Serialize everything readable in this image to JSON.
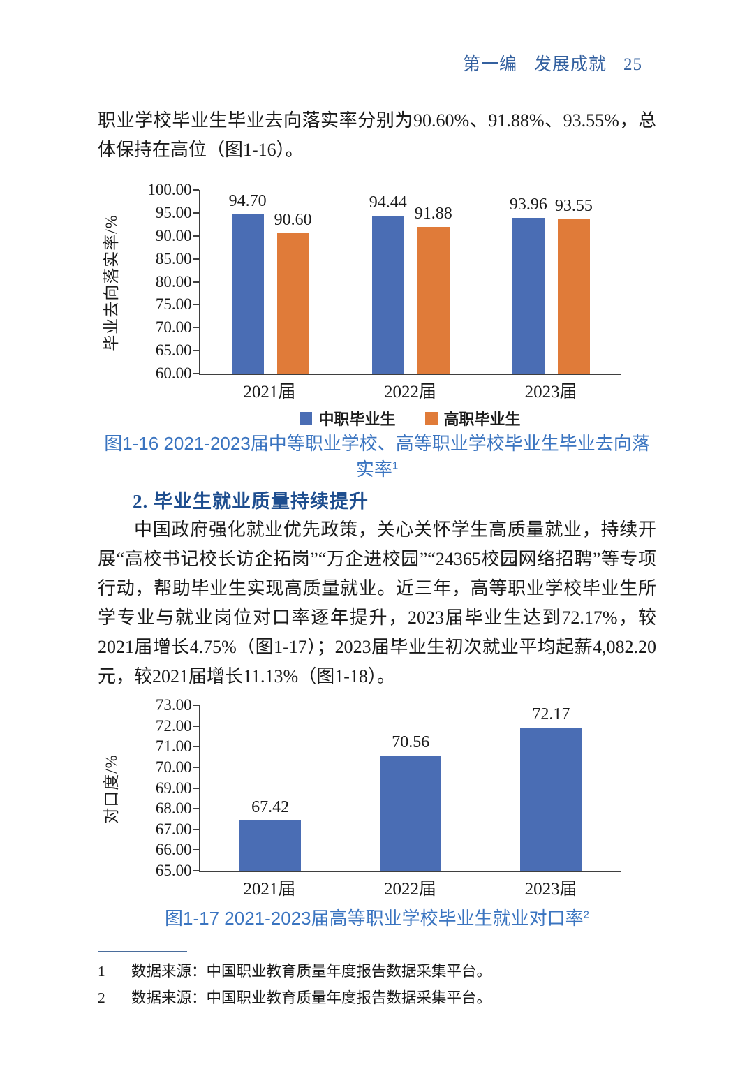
{
  "header": {
    "part_label": "第一编",
    "part_title": "发展成就",
    "page_number": "25"
  },
  "intro": {
    "text": "职业学校毕业生毕业去向落实率分别为90.60%、91.88%、93.55%，总体保持在高位（图1-16）。"
  },
  "chart_data": [
    {
      "type": "bar",
      "categories": [
        "2021届",
        "2022届",
        "2023届"
      ],
      "series": [
        {
          "name": "中职毕业生",
          "color": "#4a6db4",
          "values": [
            94.7,
            94.44,
            93.96
          ]
        },
        {
          "name": "高职毕业生",
          "color": "#e07b39",
          "values": [
            90.6,
            91.88,
            93.55
          ]
        }
      ],
      "title": "",
      "xlabel": "",
      "ylabel": "毕业去向落实率/%",
      "ylim": [
        60,
        100
      ],
      "ystep": 5,
      "grid": false,
      "legend_position": "bottom"
    },
    {
      "type": "bar",
      "categories": [
        "2021届",
        "2022届",
        "2023届"
      ],
      "series": [
        {
          "name": "对口度",
          "color": "#4a6db4",
          "values": [
            67.42,
            70.56,
            72.17
          ]
        }
      ],
      "title": "",
      "xlabel": "",
      "ylabel": "对口度/%",
      "ylim": [
        65,
        73
      ],
      "ystep": 1,
      "grid": false,
      "legend_position": "none"
    }
  ],
  "figure1": {
    "caption": "图1-16  2021-2023届中等职业学校、高等职业学校毕业生毕业去向落实率",
    "footnote_ref": "1"
  },
  "section": {
    "heading": "2. 毕业生就业质量持续提升",
    "paragraph": "中国政府强化就业优先政策，关心关怀学生高质量就业，持续开展“高校书记校长访企拓岗”“万企进校园”“24365校园网络招聘”等专项行动，帮助毕业生实现高质量就业。近三年，高等职业学校毕业生所学专业与就业岗位对口率逐年提升，2023届毕业生达到72.17%，较2021届增长4.75%（图1-17）；2023届毕业生初次就业平均起薪4,082.20元，较2021届增长11.13%（图1-18）。"
  },
  "figure2": {
    "caption": "图1-17  2021-2023届高等职业学校毕业生就业对口率",
    "footnote_ref": "2"
  },
  "footnotes": [
    {
      "marker": "1",
      "text": "数据来源：中国职业教育质量年度报告数据采集平台。"
    },
    {
      "marker": "2",
      "text": "数据来源：中国职业教育质量年度报告数据采集平台。"
    }
  ]
}
